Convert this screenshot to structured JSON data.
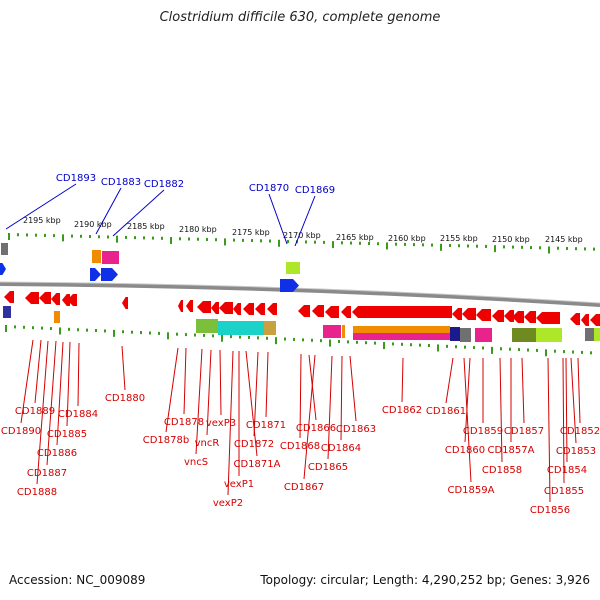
{
  "title": "Clostridium difficile 630, complete genome",
  "footer": {
    "accession": "Accession: NC_009089",
    "stats": "Topology: circular; Length: 4,290,252 bp; Genes: 3,926"
  },
  "colors": {
    "forward_labels": "#0000c8",
    "reverse_labels": "#d40000",
    "ticks": "#3a9a1a",
    "backbone": "#8a8a8a"
  },
  "scale_labels": [
    "2195 kbp",
    "2190 kbp",
    "2185 kbp",
    "2180 kbp",
    "2175 kbp",
    "2170 kbp",
    "2165 kbp",
    "2160 kbp",
    "2155 kbp",
    "2150 kbp",
    "2145 kbp"
  ],
  "forward_genes": [
    "CD1893",
    "CD1883",
    "CD1882",
    "CD1870",
    "CD1869"
  ],
  "reverse_genes": [
    "CD1889",
    "CD1890",
    "CD1884",
    "CD1885",
    "CD1886",
    "CD1887",
    "CD1888",
    "CD1880",
    "CD1878",
    "CD1878b",
    "vexP3",
    "vncR",
    "vncS",
    "CD1871",
    "CD1872",
    "CD1871A",
    "vexP1",
    "vexP2",
    "CD1866",
    "CD1868",
    "CD1867",
    "CD1863",
    "CD1864",
    "CD1865",
    "CD1862",
    "CD1861",
    "CD1859",
    "CD1860",
    "CD1859A",
    "CD1857",
    "CD1857A",
    "CD1858",
    "CD1852",
    "CD1853",
    "CD1854",
    "CD1855",
    "CD1856"
  ]
}
